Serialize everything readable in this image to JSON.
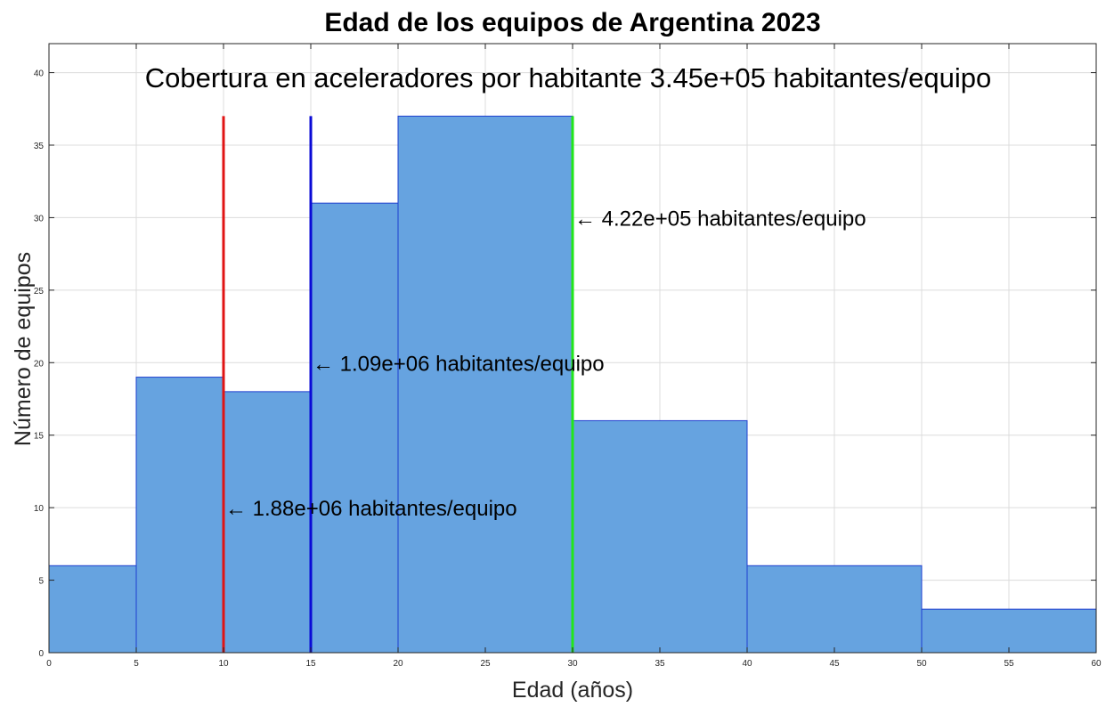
{
  "chart_data": {
    "type": "bar",
    "title": "Edad de los equipos de Argentina 2023",
    "subtitle": "Cobertura en aceleradores por habitante 3.45e+05 habitantes/equipo",
    "xlabel": "Edad (años)",
    "ylabel": "Número de equipos",
    "xlim": [
      0,
      60
    ],
    "ylim": [
      0,
      42
    ],
    "grid": true,
    "xticks": [
      0,
      5,
      10,
      15,
      20,
      25,
      30,
      35,
      40,
      45,
      50,
      55,
      60
    ],
    "yticks": [
      0,
      5,
      10,
      15,
      20,
      25,
      30,
      35,
      40
    ],
    "bins": [
      {
        "from": 0,
        "to": 5,
        "value": 6
      },
      {
        "from": 5,
        "to": 10,
        "value": 19
      },
      {
        "from": 10,
        "to": 15,
        "value": 18
      },
      {
        "from": 15,
        "to": 20,
        "value": 31
      },
      {
        "from": 20,
        "to": 30,
        "value": 37
      },
      {
        "from": 30,
        "to": 40,
        "value": 16
      },
      {
        "from": 40,
        "to": 50,
        "value": 6
      },
      {
        "from": 50,
        "to": 60,
        "value": 3
      }
    ],
    "bar_color": "#66a3e0",
    "bar_edge_color": "#1f3fcf",
    "markers": [
      {
        "x": 10,
        "height": 37,
        "color": "#e01414",
        "label": "1.88e+06 habitantes/equipo",
        "label_y": 10
      },
      {
        "x": 15,
        "height": 37,
        "color": "#0a0ad6",
        "label": "1.09e+06 habitantes/equipo",
        "label_y": 20
      },
      {
        "x": 30,
        "height": 37,
        "color": "#22e61a",
        "label": "4.22e+05 habitantes/equipo",
        "label_y": 30
      }
    ],
    "arrow_glyph": "←"
  }
}
